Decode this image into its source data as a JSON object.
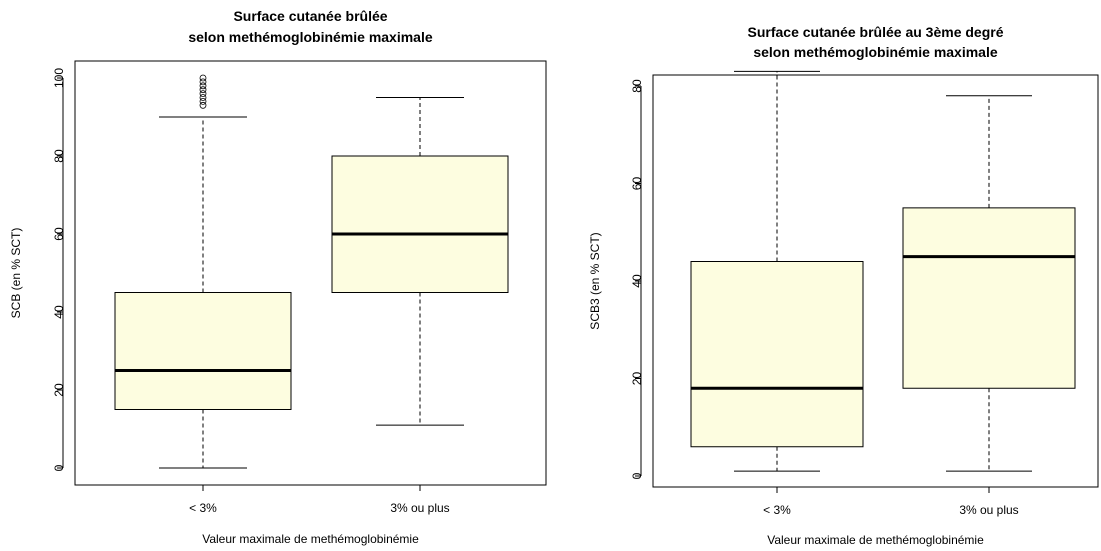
{
  "chart_data": [
    {
      "type": "boxplot",
      "title_lines": [
        "Surface cutanée brûlée",
        "selon methémoglobinémie maximale"
      ],
      "xlabel": "Valeur maximale de methémoglobinémie",
      "ylabel": "SCB (en % SCT)",
      "ylim": [
        0,
        100
      ],
      "y_ticks": [
        "0",
        "20",
        "40",
        "60",
        "80",
        "100"
      ],
      "categories": [
        "< 3%",
        "3% ou plus"
      ],
      "boxes": [
        {
          "category": "< 3%",
          "whisker_low": 0,
          "q1": 15,
          "median": 25,
          "q3": 45,
          "whisker_high": 90,
          "outliers": [
            93,
            94,
            95,
            96,
            97,
            98,
            99,
            100
          ]
        },
        {
          "category": "3% ou plus",
          "whisker_low": 11,
          "q1": 45,
          "median": 60,
          "q3": 80,
          "whisker_high": 95,
          "outliers": []
        }
      ],
      "fill_color": "#fdfde0",
      "grid": false
    },
    {
      "type": "boxplot",
      "title_lines": [
        "Surface cutanée brûlée au 3ème degré",
        "selon methémoglobinémie maximale"
      ],
      "xlabel": "Valeur maximale de methémoglobinémie",
      "ylabel": "SCB3 (en % SCT)",
      "ylim": [
        0,
        80
      ],
      "y_ticks": [
        "0",
        "20",
        "40",
        "60",
        "80"
      ],
      "categories": [
        "< 3%",
        "3% ou plus"
      ],
      "boxes": [
        {
          "category": "< 3%",
          "whisker_low": 1,
          "q1": 6,
          "median": 18,
          "q3": 44,
          "whisker_high": 83,
          "outliers": []
        },
        {
          "category": "3% ou plus",
          "whisker_low": 1,
          "q1": 18,
          "median": 45,
          "q3": 55,
          "whisker_high": 78,
          "outliers": []
        }
      ],
      "fill_color": "#fdfde0",
      "grid": false
    }
  ]
}
